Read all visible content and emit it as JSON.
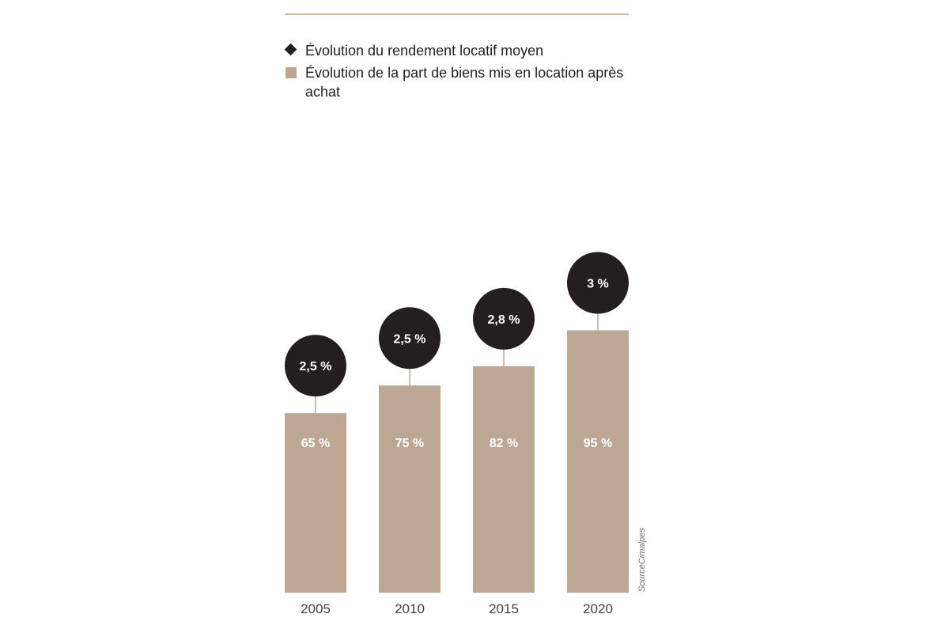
{
  "chart_data": {
    "type": "bar",
    "categories": [
      "2005",
      "2010",
      "2015",
      "2020"
    ],
    "series": [
      {
        "name": "Évolution de la part de biens mis en location après achat",
        "values": [
          65,
          75,
          82,
          95
        ],
        "labels": [
          "65 %",
          "75 %",
          "82 %",
          "95 %"
        ]
      },
      {
        "name": "Évolution du rendement locatif moyen",
        "values": [
          2.5,
          2.5,
          2.8,
          3.0
        ],
        "labels": [
          "2,5 %",
          "2,5 %",
          "2,8 %",
          "3 %"
        ]
      }
    ],
    "legend": [
      {
        "marker": "diamond",
        "label": "Évolution du rendement locatif moyen"
      },
      {
        "marker": "square",
        "label": "Évolution de la part de biens mis en location après achat"
      }
    ],
    "source": "SourceCimalpes",
    "grid": false,
    "legend_position": "top-left",
    "colors": {
      "bar": "#bca795",
      "bubble": "#231f20",
      "bubble_text": "#ffffff",
      "bar_text": "#ffffff",
      "connector": "#bca795",
      "axis_text": "#414042",
      "rule": "#c9b8a6"
    }
  }
}
